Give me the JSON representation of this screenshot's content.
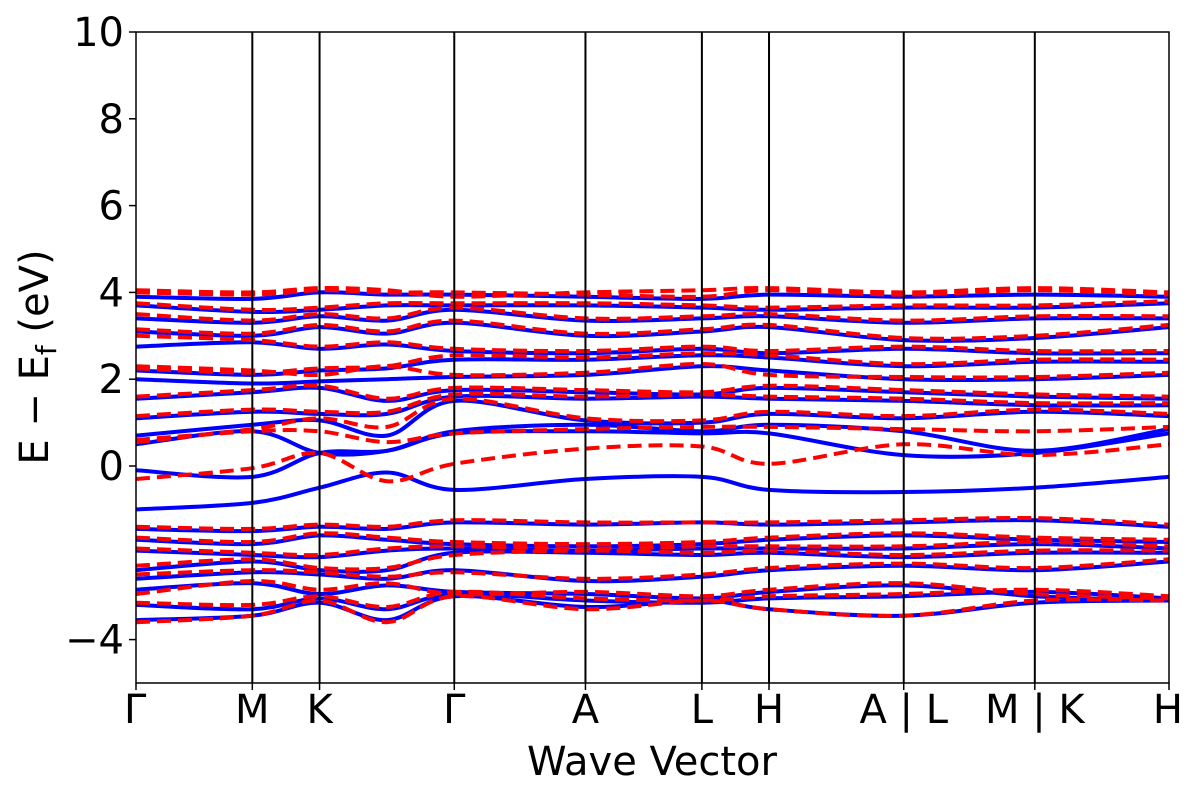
{
  "chart_data": {
    "type": "line",
    "title": "",
    "xlabel": "Wave Vector",
    "ylabel": "E − E",
    "ylabel_sub": "f",
    "ylabel_unit": " (eV)",
    "ylim": [
      -5,
      10
    ],
    "yticks": [
      {
        "value": -4,
        "label": "−4"
      },
      {
        "value": 0,
        "label": "0"
      },
      {
        "value": 2,
        "label": "2"
      },
      {
        "value": 4,
        "label": "4"
      },
      {
        "value": 6,
        "label": "6"
      },
      {
        "value": 8,
        "label": "8"
      },
      {
        "value": 10,
        "label": "10"
      }
    ],
    "kpath": [
      {
        "label": "Γ",
        "x": 0.0
      },
      {
        "label": "M",
        "x": 0.1126
      },
      {
        "label": "K",
        "x": 0.1777
      },
      {
        "label": "Γ",
        "x": 0.3081
      },
      {
        "label": "A",
        "x": 0.4351
      },
      {
        "label": "L",
        "x": 0.5478
      },
      {
        "label": "H",
        "x": 0.6128
      },
      {
        "label": "A | L",
        "x": 0.7432
      },
      {
        "label": "M | K",
        "x": 0.8701
      },
      {
        "label": "H",
        "x": 1.0
      }
    ],
    "grid": false,
    "legend": "none",
    "series_styles": [
      {
        "key": "up",
        "color": "#0000ff",
        "style": "solid"
      },
      {
        "key": "down",
        "color": "#ff0000",
        "style": "dashed"
      }
    ],
    "bands_blue": [
      {
        "values": [
          -3.55,
          -3.45,
          -3.15,
          -3.55,
          -3.0,
          -3.25,
          -3.1,
          -3.3,
          -3.45,
          -3.15,
          -3.1
        ]
      },
      {
        "values": [
          -3.2,
          -3.3,
          -3.05,
          -3.3,
          -2.95,
          -3.1,
          -3.15,
          -3.05,
          -3.0,
          -2.9,
          -3.05
        ]
      },
      {
        "values": [
          -2.85,
          -2.7,
          -2.95,
          -2.75,
          -2.9,
          -2.95,
          -3.05,
          -2.9,
          -2.75,
          -3.0,
          -3.1
        ]
      },
      {
        "values": [
          -2.6,
          -2.45,
          -2.5,
          -2.6,
          -2.4,
          -2.65,
          -2.55,
          -2.4,
          -2.3,
          -2.4,
          -2.2
        ]
      },
      {
        "values": [
          -2.4,
          -2.2,
          -2.4,
          -2.4,
          -2.0,
          -2.0,
          -2.05,
          -2.0,
          -2.1,
          -2.0,
          -2.0
        ]
      },
      {
        "values": [
          -1.95,
          -2.05,
          -2.1,
          -1.95,
          -1.9,
          -1.95,
          -1.9,
          -1.9,
          -1.9,
          -1.8,
          -1.9
        ]
      },
      {
        "values": [
          -1.7,
          -1.8,
          -1.6,
          -1.7,
          -1.8,
          -1.85,
          -1.8,
          -1.7,
          -1.6,
          -1.7,
          -1.75
        ]
      },
      {
        "values": [
          -1.45,
          -1.5,
          -1.4,
          -1.45,
          -1.3,
          -1.35,
          -1.3,
          -1.35,
          -1.3,
          -1.25,
          -1.4
        ]
      },
      {
        "values": [
          -1.0,
          -0.85,
          -0.5,
          -0.15,
          -0.55,
          -0.3,
          -0.25,
          -0.55,
          -0.6,
          -0.5,
          -0.25
        ]
      },
      {
        "values": [
          -0.1,
          -0.25,
          0.3,
          0.35,
          0.75,
          0.8,
          0.75,
          0.75,
          0.25,
          0.3,
          0.75
        ]
      },
      {
        "values": [
          0.5,
          0.8,
          0.3,
          0.35,
          0.8,
          0.95,
          0.8,
          0.95,
          0.8,
          0.35,
          0.85
        ]
      },
      {
        "values": [
          0.7,
          0.95,
          1.05,
          0.7,
          1.5,
          1.05,
          1.0,
          1.2,
          1.1,
          1.25,
          1.15
        ]
      },
      {
        "values": [
          1.1,
          1.25,
          1.2,
          1.2,
          1.6,
          1.55,
          1.6,
          1.55,
          1.5,
          1.4,
          1.4
        ]
      },
      {
        "values": [
          1.55,
          1.7,
          1.8,
          1.5,
          1.75,
          1.7,
          1.65,
          1.8,
          1.7,
          1.6,
          1.55
        ]
      },
      {
        "values": [
          2.0,
          1.9,
          1.95,
          2.0,
          2.05,
          2.1,
          2.3,
          2.2,
          2.0,
          2.0,
          2.1
        ]
      },
      {
        "values": [
          2.2,
          2.1,
          2.2,
          2.25,
          2.45,
          2.45,
          2.55,
          2.5,
          2.3,
          2.4,
          2.4
        ]
      },
      {
        "values": [
          2.75,
          2.85,
          2.7,
          2.8,
          2.65,
          2.6,
          2.7,
          2.6,
          2.7,
          2.6,
          2.6
        ]
      },
      {
        "values": [
          3.1,
          3.0,
          3.2,
          3.05,
          3.3,
          3.0,
          3.1,
          3.2,
          2.9,
          2.95,
          3.2
        ]
      },
      {
        "values": [
          3.4,
          3.3,
          3.45,
          3.35,
          3.6,
          3.35,
          3.4,
          3.45,
          3.3,
          3.4,
          3.4
        ]
      },
      {
        "values": [
          3.7,
          3.55,
          3.6,
          3.7,
          3.7,
          3.7,
          3.65,
          3.6,
          3.65,
          3.65,
          3.75
        ]
      },
      {
        "values": [
          3.9,
          3.85,
          4.0,
          3.95,
          3.95,
          3.9,
          3.85,
          3.95,
          3.9,
          3.95,
          3.9
        ]
      }
    ],
    "bands_red": [
      {
        "values": [
          -3.6,
          -3.45,
          -3.1,
          -3.6,
          -3.0,
          -3.3,
          -3.1,
          -3.3,
          -3.45,
          -3.1,
          -3.1
        ]
      },
      {
        "values": [
          -3.15,
          -3.2,
          -3.0,
          -3.25,
          -2.9,
          -3.05,
          -3.1,
          -3.0,
          -2.95,
          -2.85,
          -3.0
        ]
      },
      {
        "values": [
          -2.95,
          -2.65,
          -2.85,
          -2.7,
          -2.95,
          -2.9,
          -3.0,
          -2.85,
          -2.7,
          -2.95,
          -3.05
        ]
      },
      {
        "values": [
          -2.5,
          -2.4,
          -2.45,
          -2.55,
          -2.45,
          -2.6,
          -2.5,
          -2.35,
          -2.25,
          -2.35,
          -2.15
        ]
      },
      {
        "values": [
          -2.3,
          -2.15,
          -2.35,
          -2.35,
          -2.05,
          -1.95,
          -2.0,
          -1.95,
          -2.05,
          -1.95,
          -1.95
        ]
      },
      {
        "values": [
          -1.9,
          -2.0,
          -2.05,
          -1.9,
          -1.85,
          -1.9,
          -1.85,
          -1.85,
          -1.85,
          -1.75,
          -1.85
        ]
      },
      {
        "values": [
          -1.65,
          -1.75,
          -1.55,
          -1.65,
          -1.75,
          -1.8,
          -1.75,
          -1.65,
          -1.55,
          -1.65,
          -1.7
        ]
      },
      {
        "values": [
          -1.4,
          -1.45,
          -1.35,
          -1.4,
          -1.25,
          -1.3,
          -1.3,
          -1.3,
          -1.25,
          -1.2,
          -1.35
        ]
      },
      {
        "values": [
          -0.3,
          -0.05,
          0.3,
          -0.35,
          0.05,
          0.4,
          0.45,
          0.05,
          0.5,
          0.25,
          0.5
        ]
      },
      {
        "values": [
          0.6,
          0.8,
          0.8,
          0.55,
          0.75,
          0.85,
          0.9,
          0.9,
          0.85,
          0.8,
          0.9
        ]
      },
      {
        "values": [
          0.55,
          0.85,
          1.1,
          0.9,
          1.55,
          1.1,
          1.05,
          1.25,
          1.15,
          1.3,
          1.2
        ]
      },
      {
        "values": [
          1.15,
          1.3,
          1.25,
          1.25,
          1.65,
          1.6,
          1.65,
          1.6,
          1.55,
          1.45,
          1.45
        ]
      },
      {
        "values": [
          1.6,
          1.75,
          1.85,
          1.55,
          1.8,
          1.75,
          1.7,
          1.85,
          1.75,
          1.65,
          1.6
        ]
      },
      {
        "values": [
          2.3,
          2.2,
          2.1,
          2.3,
          2.1,
          2.15,
          2.35,
          2.1,
          2.05,
          2.05,
          2.15
        ]
      },
      {
        "values": [
          2.25,
          2.15,
          2.25,
          2.3,
          2.55,
          2.5,
          2.6,
          2.55,
          2.35,
          2.45,
          2.45
        ]
      },
      {
        "values": [
          3.0,
          2.9,
          2.75,
          2.85,
          2.7,
          2.65,
          2.75,
          2.65,
          2.75,
          2.65,
          2.65
        ]
      },
      {
        "values": [
          3.15,
          3.05,
          3.25,
          3.1,
          3.35,
          3.05,
          3.15,
          3.25,
          2.95,
          3.0,
          3.25
        ]
      },
      {
        "values": [
          3.5,
          3.35,
          3.5,
          3.4,
          3.65,
          3.4,
          3.45,
          3.5,
          3.35,
          3.45,
          3.45
        ]
      },
      {
        "values": [
          3.75,
          3.6,
          3.65,
          3.75,
          3.75,
          3.75,
          3.7,
          3.65,
          3.7,
          3.7,
          3.8
        ]
      },
      {
        "values": [
          4.0,
          3.95,
          4.05,
          4.0,
          4.0,
          3.95,
          3.9,
          4.05,
          3.95,
          4.05,
          3.95
        ]
      },
      {
        "values": [
          4.05,
          4.0,
          4.1,
          4.05,
          3.9,
          4.0,
          4.05,
          4.1,
          4.0,
          4.1,
          4.0
        ]
      }
    ]
  }
}
